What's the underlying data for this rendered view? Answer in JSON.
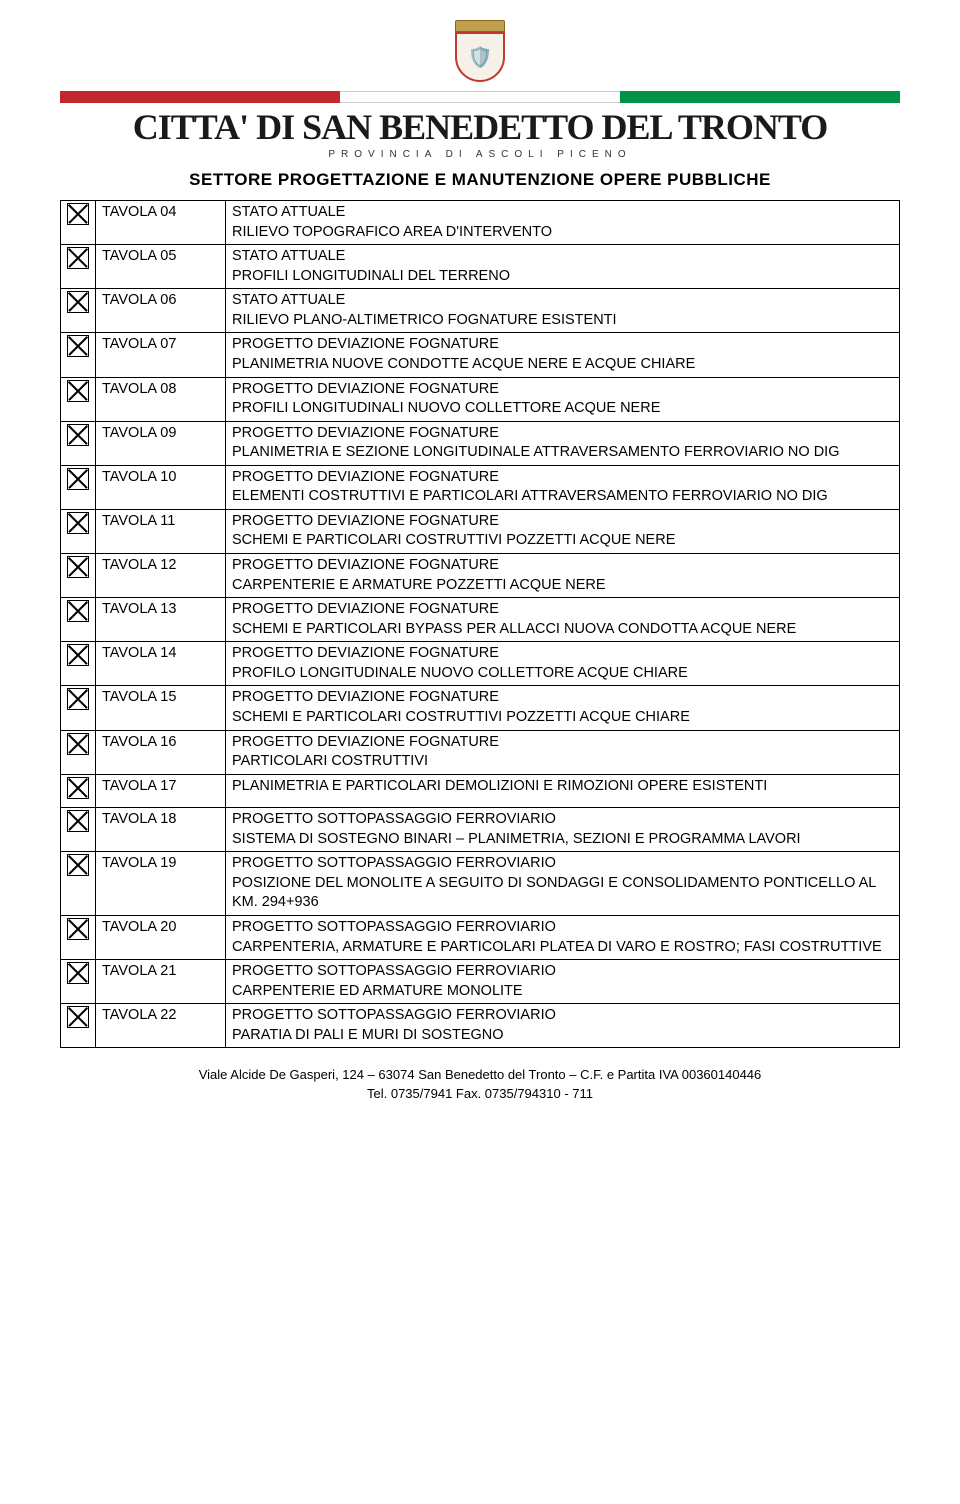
{
  "header": {
    "city_name": "CITTA' DI SAN BENEDETTO DEL TRONTO",
    "province": "PROVINCIA DI ASCOLI PICENO",
    "department": "SETTORE PROGETTAZIONE E MANUTENZIONE OPERE PUBBLICHE",
    "colors": {
      "stripe_red": "#c1272d",
      "stripe_white": "#ffffff",
      "stripe_green": "#009247"
    }
  },
  "table": {
    "rows": [
      {
        "label": "TAVOLA 04",
        "desc": "STATO ATTUALE\nRILIEVO TOPOGRAFICO AREA D'INTERVENTO"
      },
      {
        "label": "TAVOLA 05",
        "desc": "STATO ATTUALE\nPROFILI LONGITUDINALI DEL TERRENO"
      },
      {
        "label": "TAVOLA 06",
        "desc": "STATO ATTUALE\nRILIEVO PLANO-ALTIMETRICO FOGNATURE ESISTENTI"
      },
      {
        "label": "TAVOLA 07",
        "desc": "PROGETTO DEVIAZIONE FOGNATURE\nPLANIMETRIA NUOVE CONDOTTE ACQUE NERE E ACQUE CHIARE"
      },
      {
        "label": "TAVOLA 08",
        "desc": "PROGETTO DEVIAZIONE FOGNATURE\nPROFILI LONGITUDINALI NUOVO COLLETTORE ACQUE NERE"
      },
      {
        "label": "TAVOLA 09",
        "desc": "PROGETTO DEVIAZIONE FOGNATURE\nPLANIMETRIA E SEZIONE LONGITUDINALE ATTRAVERSAMENTO FERROVIARIO NO DIG"
      },
      {
        "label": "TAVOLA 10",
        "desc": "PROGETTO DEVIAZIONE FOGNATURE\nELEMENTI COSTRUTTIVI E PARTICOLARI ATTRAVERSAMENTO FERROVIARIO NO DIG"
      },
      {
        "label": "TAVOLA 11",
        "desc": "PROGETTO DEVIAZIONE FOGNATURE\nSCHEMI E PARTICOLARI COSTRUTTIVI POZZETTI ACQUE NERE"
      },
      {
        "label": "TAVOLA 12",
        "desc": "PROGETTO DEVIAZIONE FOGNATURE\nCARPENTERIE E ARMATURE POZZETTI ACQUE NERE"
      },
      {
        "label": "TAVOLA 13",
        "desc": "PROGETTO DEVIAZIONE FOGNATURE\nSCHEMI E PARTICOLARI BYPASS PER ALLACCI NUOVA CONDOTTA ACQUE NERE"
      },
      {
        "label": "TAVOLA 14",
        "desc": "PROGETTO DEVIAZIONE FOGNATURE\nPROFILO LONGITUDINALE NUOVO COLLETTORE ACQUE CHIARE"
      },
      {
        "label": "TAVOLA 15",
        "desc": "PROGETTO DEVIAZIONE FOGNATURE\nSCHEMI E PARTICOLARI COSTRUTTIVI POZZETTI ACQUE CHIARE"
      },
      {
        "label": "TAVOLA 16",
        "desc": "PROGETTO DEVIAZIONE FOGNATURE\nPARTICOLARI COSTRUTTIVI"
      },
      {
        "label": "TAVOLA 17",
        "desc": "PLANIMETRIA E PARTICOLARI DEMOLIZIONI E RIMOZIONI OPERE ESISTENTI"
      },
      {
        "label": "TAVOLA 18",
        "desc": "PROGETTO SOTTOPASSAGGIO FERROVIARIO\nSISTEMA DI SOSTEGNO BINARI – PLANIMETRIA, SEZIONI E PROGRAMMA LAVORI"
      },
      {
        "label": "TAVOLA 19",
        "desc": "PROGETTO SOTTOPASSAGGIO FERROVIARIO\nPOSIZIONE DEL MONOLITE A SEGUITO DI SONDAGGI E CONSOLIDAMENTO PONTICELLO AL KM. 294+936"
      },
      {
        "label": "TAVOLA 20",
        "desc": "PROGETTO SOTTOPASSAGGIO FERROVIARIO\nCARPENTERIA, ARMATURE E PARTICOLARI PLATEA DI VARO E ROSTRO; FASI COSTRUTTIVE"
      },
      {
        "label": "TAVOLA 21",
        "desc": "PROGETTO SOTTOPASSAGGIO FERROVIARIO\nCARPENTERIE ED ARMATURE MONOLITE"
      },
      {
        "label": "TAVOLA 22",
        "desc": "PROGETTO SOTTOPASSAGGIO FERROVIARIO\nPARATIA DI PALI E MURI DI SOSTEGNO"
      }
    ]
  },
  "footer": {
    "line1": "Viale Alcide De Gasperi, 124 – 63074 San Benedetto del Tronto – C.F. e Partita IVA 00360140446",
    "line2": "Tel. 0735/7941        Fax. 0735/794310 - 711"
  }
}
